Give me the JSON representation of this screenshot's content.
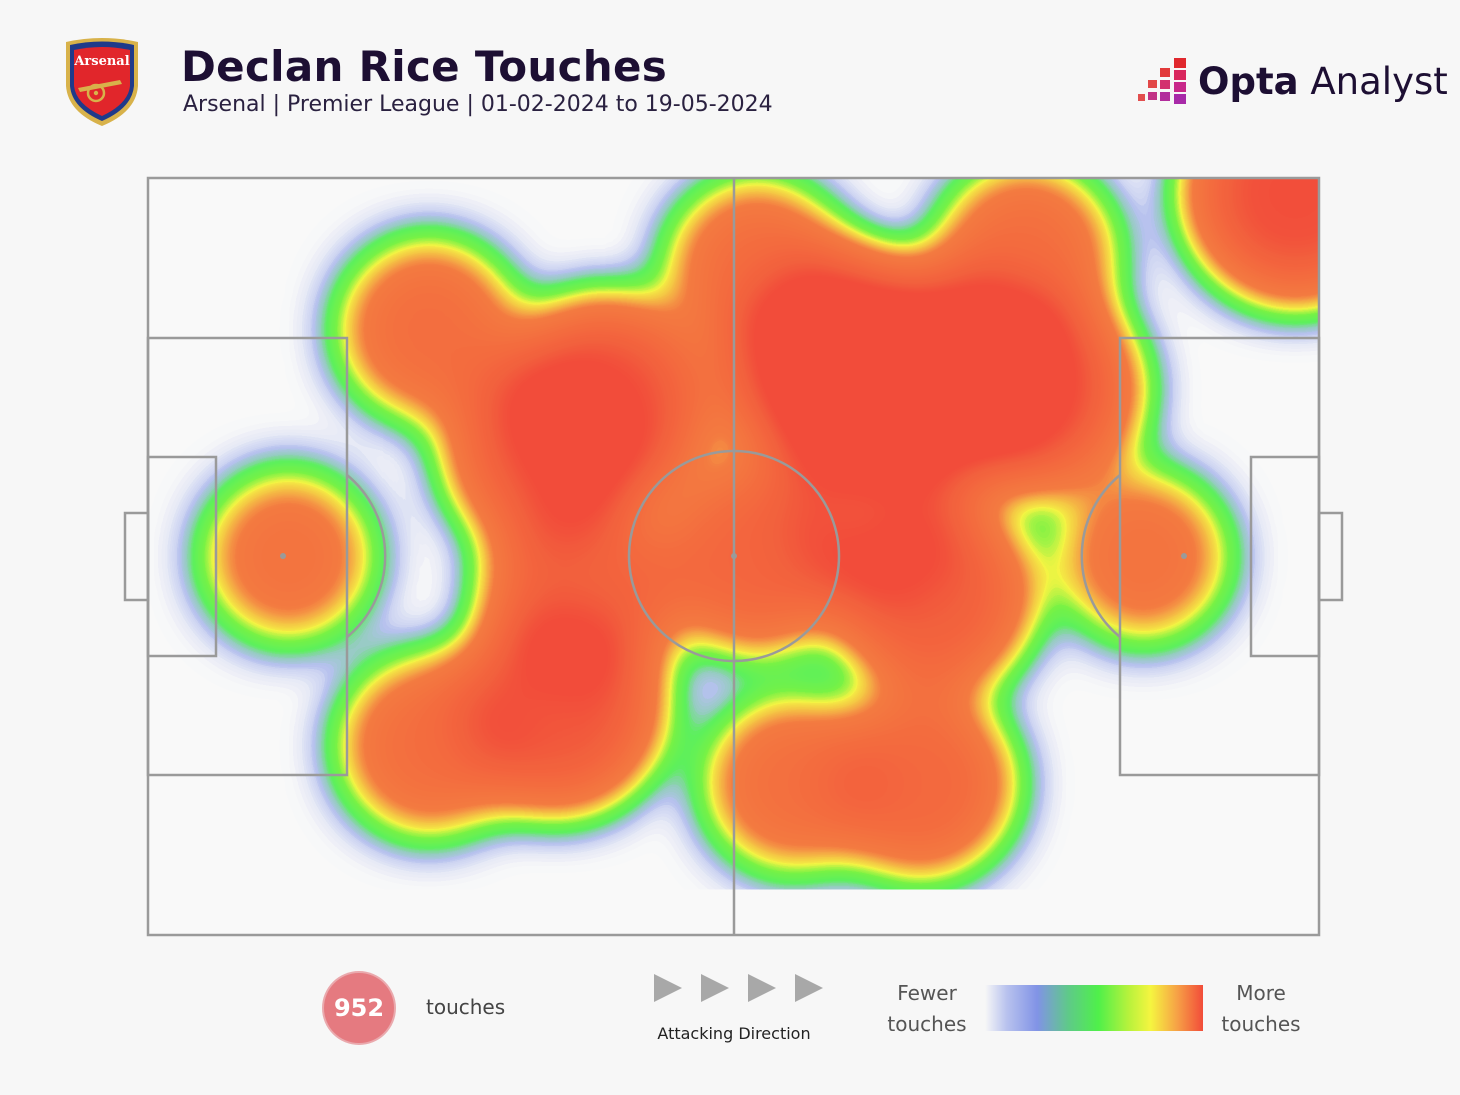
{
  "header": {
    "title": "Declan Rice Touches",
    "subtitle": "Arsenal | Premier League | 01-02-2024 to 19-05-2024",
    "crest_text": "Arsenal",
    "brand_bold": "Opta",
    "brand_light": " Analyst"
  },
  "chart_data": {
    "type": "heatmap",
    "title": "Declan Rice Touches",
    "subtitle": "Arsenal | Premier League | 01-02-2024 to 19-05-2024",
    "pitch": {
      "length": 100,
      "width": 100,
      "attacking_direction": "left-to-right"
    },
    "total_touches": 952,
    "hotspots": [
      {
        "x": 59,
        "y": 75,
        "intensity": 1.0
      },
      {
        "x": 64,
        "y": 73,
        "intensity": 0.85
      },
      {
        "x": 70,
        "y": 74,
        "intensity": 0.85
      },
      {
        "x": 76,
        "y": 72,
        "intensity": 0.65
      },
      {
        "x": 39,
        "y": 70,
        "intensity": 0.75
      },
      {
        "x": 34,
        "y": 64,
        "intensity": 0.6
      },
      {
        "x": 37,
        "y": 45,
        "intensity": 0.55
      },
      {
        "x": 35,
        "y": 30,
        "intensity": 0.7
      },
      {
        "x": 98,
        "y": 98,
        "intensity": 0.8
      },
      {
        "x": 67,
        "y": 45,
        "intensity": 0.6
      },
      {
        "x": 52,
        "y": 50,
        "intensity": 0.5
      },
      {
        "x": 62,
        "y": 55,
        "intensity": 0.45
      },
      {
        "x": 66,
        "y": 20,
        "intensity": 0.45
      },
      {
        "x": 24,
        "y": 80,
        "intensity": 0.35
      },
      {
        "x": 24,
        "y": 25,
        "intensity": 0.35
      },
      {
        "x": 52,
        "y": 88,
        "intensity": 0.35
      },
      {
        "x": 75,
        "y": 90,
        "intensity": 0.35
      },
      {
        "x": 12,
        "y": 50,
        "intensity": 0.25
      },
      {
        "x": 85,
        "y": 50,
        "intensity": 0.25
      },
      {
        "x": 55,
        "y": 20,
        "intensity": 0.3
      }
    ],
    "color_scale": [
      "#8193e6",
      "#4ff04a",
      "#f5f540",
      "#f24c3a"
    ]
  },
  "legend": {
    "touch_count": "952",
    "touch_label": "touches",
    "direction_label": "Attacking Direction",
    "fewer_label": "Fewer touches",
    "more_label": "More touches"
  }
}
